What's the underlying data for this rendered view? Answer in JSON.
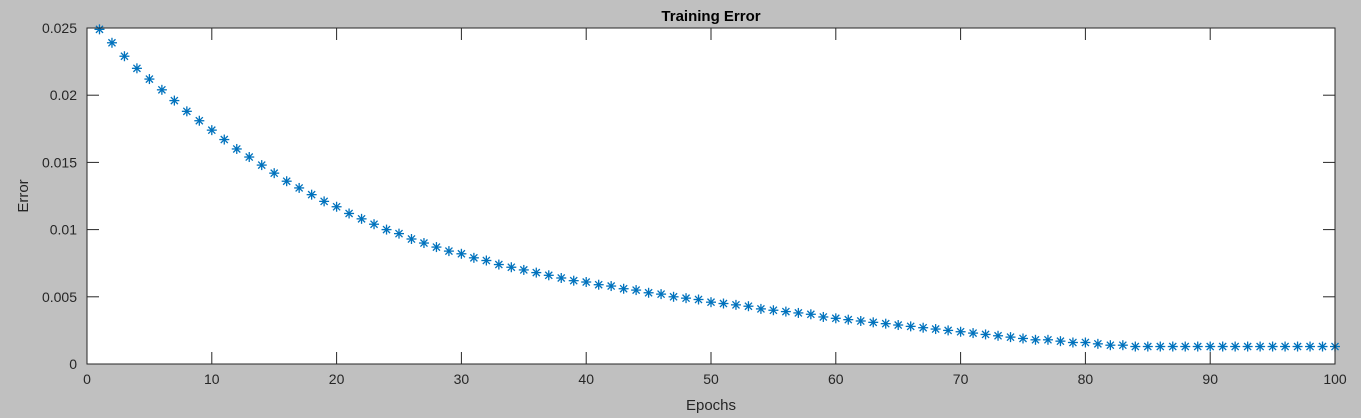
{
  "chart_data": {
    "type": "scatter",
    "title": "Training Error",
    "xlabel": "Epochs",
    "ylabel": "Error",
    "xlim": [
      0,
      100
    ],
    "ylim": [
      0,
      0.025
    ],
    "xticks": [
      0,
      10,
      20,
      30,
      40,
      50,
      60,
      70,
      80,
      90,
      100
    ],
    "xtick_labels": [
      "0",
      "10",
      "20",
      "30",
      "40",
      "50",
      "60",
      "70",
      "80",
      "90",
      "100"
    ],
    "yticks": [
      0,
      0.005,
      0.01,
      0.015,
      0.02,
      0.025
    ],
    "ytick_labels": [
      "0",
      "0.005",
      "0.01",
      "0.015",
      "0.02",
      "0.025"
    ],
    "grid": false,
    "legend": "none",
    "marker": "asterisk",
    "series": [
      {
        "color": "#0072bd",
        "x": [
          1,
          2,
          3,
          4,
          5,
          6,
          7,
          8,
          9,
          10,
          11,
          12,
          13,
          14,
          15,
          16,
          17,
          18,
          19,
          20,
          21,
          22,
          23,
          24,
          25,
          26,
          27,
          28,
          29,
          30,
          31,
          32,
          33,
          34,
          35,
          36,
          37,
          38,
          39,
          40,
          41,
          42,
          43,
          44,
          45,
          46,
          47,
          48,
          49,
          50,
          51,
          52,
          53,
          54,
          55,
          56,
          57,
          58,
          59,
          60,
          61,
          62,
          63,
          64,
          65,
          66,
          67,
          68,
          69,
          70,
          71,
          72,
          73,
          74,
          75,
          76,
          77,
          78,
          79,
          80,
          81,
          82,
          83,
          84,
          85,
          86,
          87,
          88,
          89,
          90,
          91,
          92,
          93,
          94,
          95,
          96,
          97,
          98,
          99,
          100
        ],
        "y": [
          0.0249,
          0.0239,
          0.0229,
          0.022,
          0.0212,
          0.0204,
          0.0196,
          0.0188,
          0.0181,
          0.0174,
          0.0167,
          0.016,
          0.0154,
          0.0148,
          0.0142,
          0.0136,
          0.0131,
          0.0126,
          0.0121,
          0.0117,
          0.0112,
          0.0108,
          0.0104,
          0.01,
          0.0097,
          0.0093,
          0.009,
          0.0087,
          0.0084,
          0.0082,
          0.0079,
          0.0077,
          0.0074,
          0.0072,
          0.007,
          0.0068,
          0.0066,
          0.0064,
          0.0062,
          0.0061,
          0.0059,
          0.0058,
          0.0056,
          0.0055,
          0.0053,
          0.0052,
          0.005,
          0.0049,
          0.0048,
          0.0046,
          0.0045,
          0.0044,
          0.0043,
          0.0041,
          0.004,
          0.0039,
          0.0038,
          0.0037,
          0.0035,
          0.0034,
          0.0033,
          0.0032,
          0.0031,
          0.003,
          0.0029,
          0.0028,
          0.0027,
          0.0026,
          0.0025,
          0.0024,
          0.0023,
          0.0022,
          0.0021,
          0.002,
          0.0019,
          0.0018,
          0.0018,
          0.0017,
          0.0016,
          0.0016,
          0.0015,
          0.0014,
          0.0014,
          0.0013,
          0.0013,
          0.0013,
          0.0013,
          0.0013,
          0.0013,
          0.0013,
          0.0013,
          0.0013,
          0.0013,
          0.0013,
          0.0013,
          0.0013,
          0.0013,
          0.0013,
          0.0013,
          0.0013
        ]
      }
    ]
  }
}
